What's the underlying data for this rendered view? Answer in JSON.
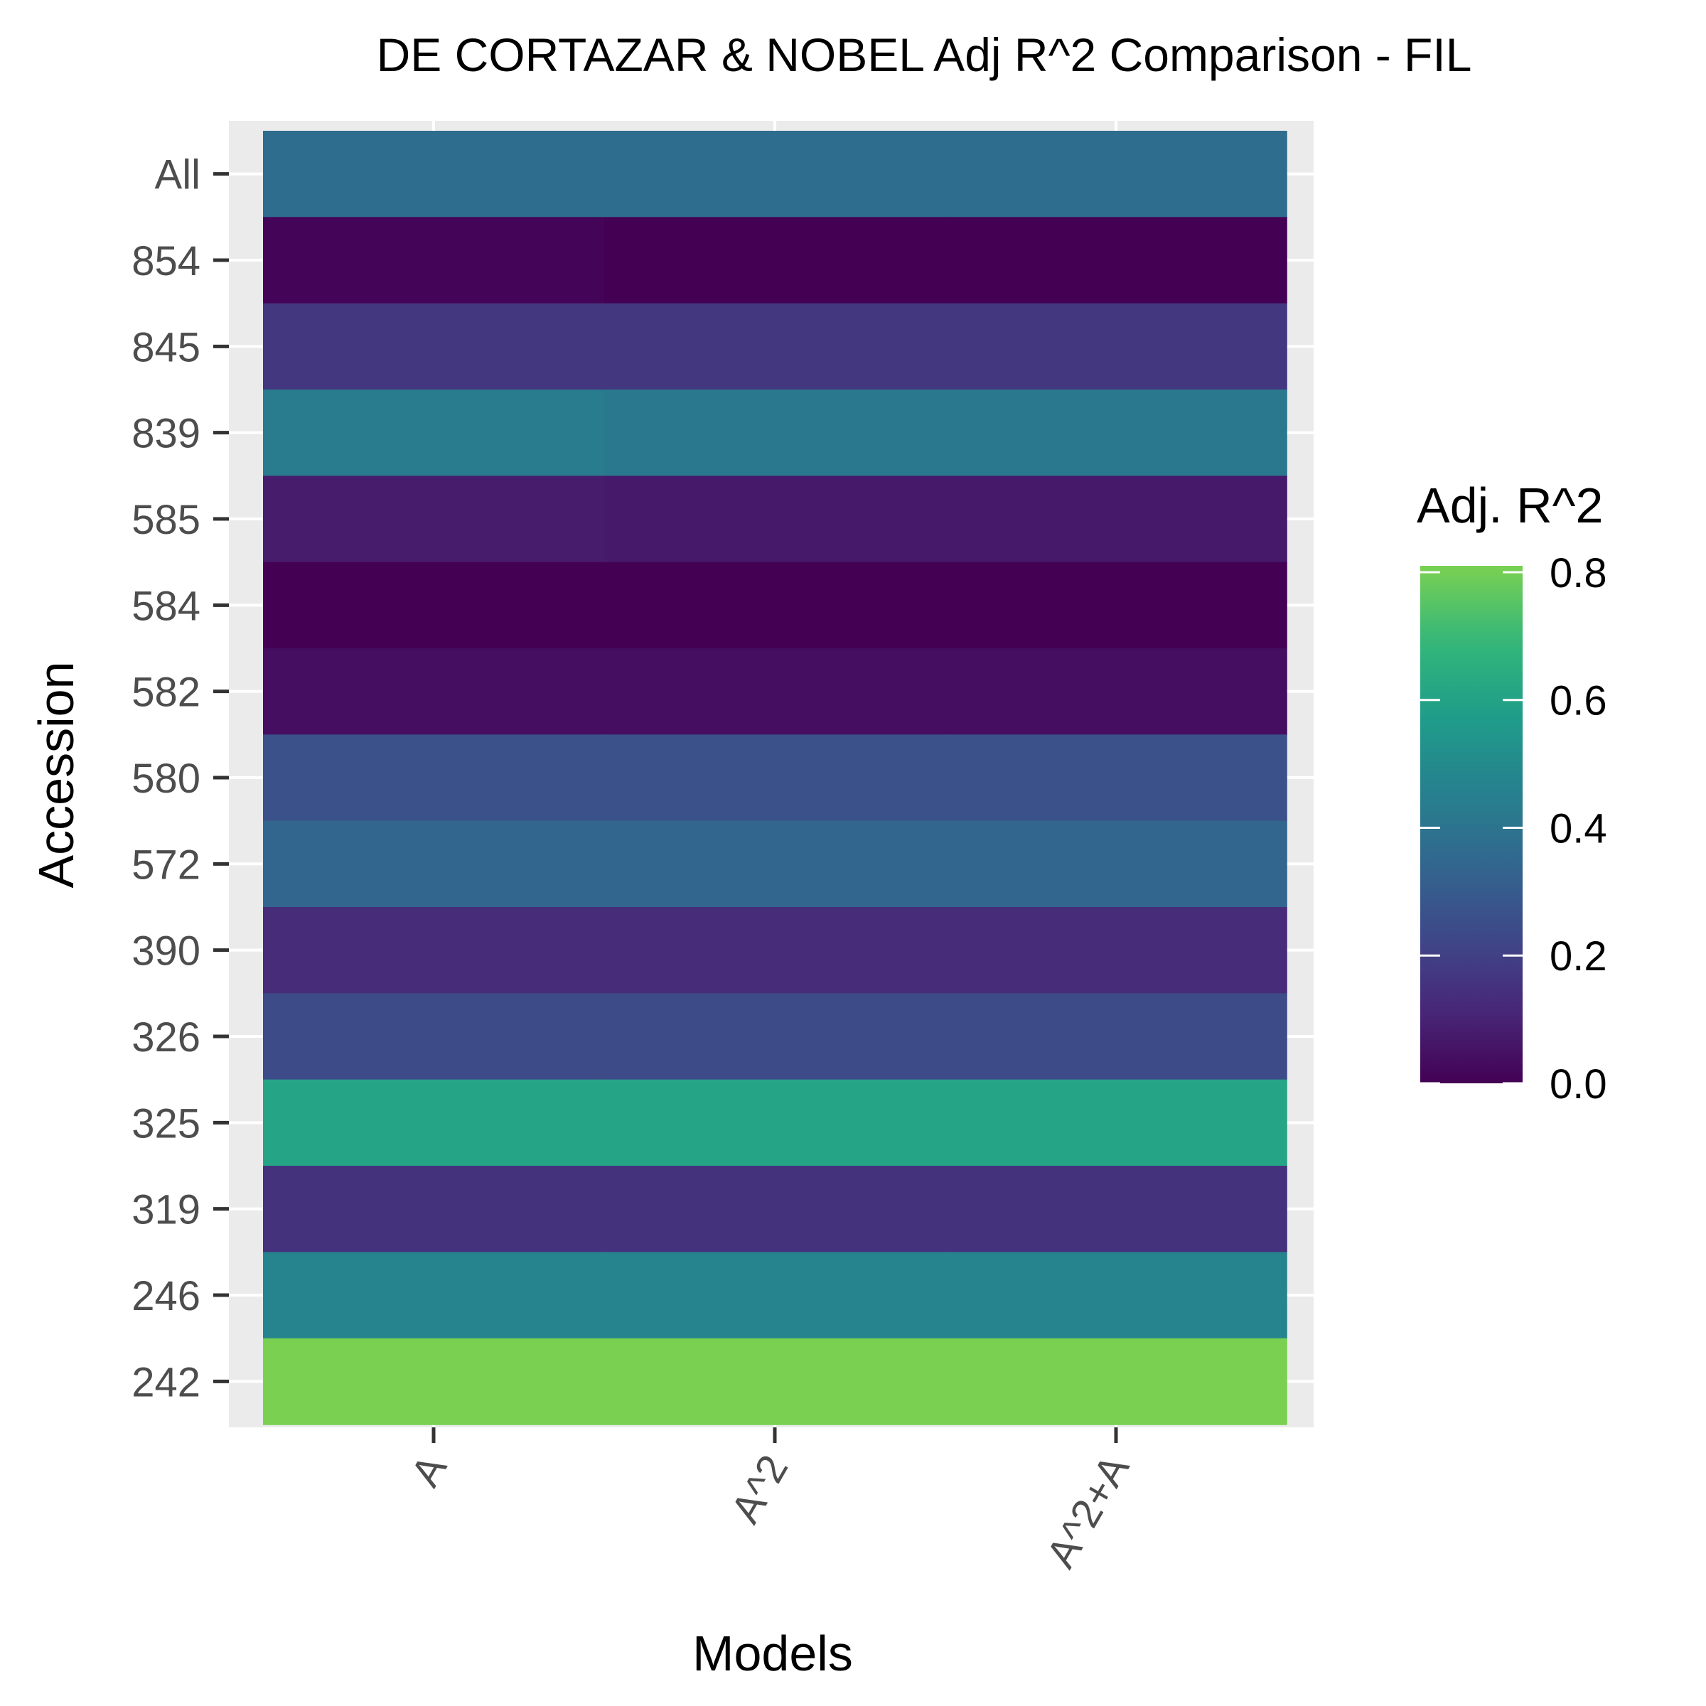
{
  "chart_data": {
    "type": "heatmap",
    "title": "DE CORTAZAR & NOBEL Adj R^2 Comparison - FIL",
    "xlabel": "Models",
    "ylabel": "Accession",
    "x_categories": [
      "A",
      "A^2",
      "A^2+A"
    ],
    "y_categories": [
      "All",
      "854",
      "845",
      "839",
      "585",
      "584",
      "582",
      "580",
      "572",
      "390",
      "326",
      "325",
      "319",
      "246",
      "242"
    ],
    "values": [
      [
        0.37,
        0.37,
        0.37
      ],
      [
        0.01,
        0.0,
        0.0
      ],
      [
        0.17,
        0.17,
        0.17
      ],
      [
        0.43,
        0.42,
        0.42
      ],
      [
        0.08,
        0.07,
        0.07
      ],
      [
        0.0,
        0.0,
        0.0
      ],
      [
        0.04,
        0.04,
        0.04
      ],
      [
        0.26,
        0.26,
        0.26
      ],
      [
        0.34,
        0.34,
        0.34
      ],
      [
        0.13,
        0.13,
        0.13
      ],
      [
        0.24,
        0.24,
        0.24
      ],
      [
        0.61,
        0.61,
        0.61
      ],
      [
        0.15,
        0.15,
        0.15
      ],
      [
        0.47,
        0.47,
        0.47
      ],
      [
        0.81,
        0.81,
        0.81
      ]
    ],
    "colorbar": {
      "title": "Adj. R^2",
      "min": 0.0,
      "max": 0.81,
      "ticks": [
        0.0,
        0.2,
        0.4,
        0.6,
        0.8
      ],
      "tick_labels": [
        "0.0",
        "0.2",
        "0.4",
        "0.6",
        "0.8"
      ],
      "colors": [
        "#440154",
        "#482878",
        "#3e4989",
        "#31688e",
        "#26828e",
        "#1f9e89",
        "#35b779",
        "#7ad151"
      ]
    },
    "panel_background": "#ebebeb",
    "grid_color": "#ffffff",
    "grid": true,
    "legend_position": "right"
  }
}
